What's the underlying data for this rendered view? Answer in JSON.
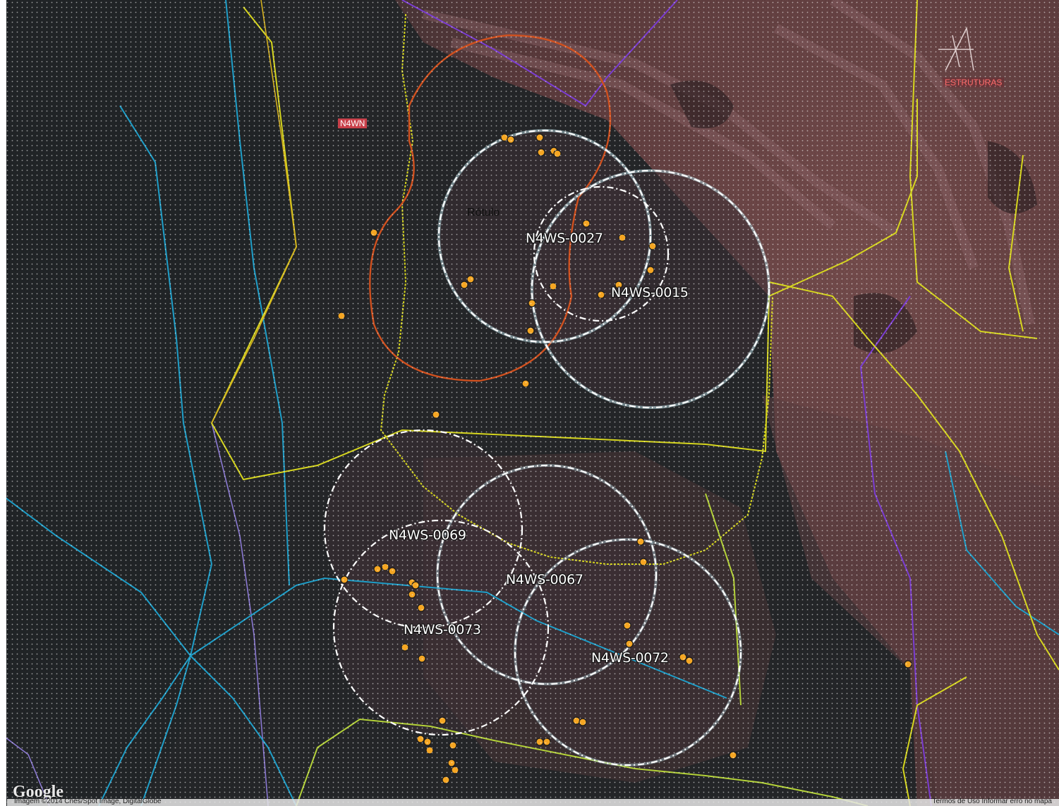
{
  "map": {
    "type": "satellite map",
    "area_labels": {
      "n4wn": "N4WN",
      "estruturas": "ESTRUTURAS",
      "rotulo": "Rótulo"
    },
    "buffer_labels": [
      {
        "id": "n4ws-0027",
        "text": "N4WS-0027"
      },
      {
        "id": "n4ws-0015",
        "text": "N4WS-0015"
      },
      {
        "id": "n4ws-0069",
        "text": "N4WS-0069"
      },
      {
        "id": "n4ws-0067",
        "text": "N4WS-0067"
      },
      {
        "id": "n4ws-0073",
        "text": "N4WS-0073"
      },
      {
        "id": "n4ws-0072",
        "text": "N4WS-0072"
      }
    ],
    "colors": {
      "forest": "#2a2c2e",
      "mine": "#6f4a4a",
      "buffer_circle": "#ffffff",
      "buffer_outline": "#b8dfe8",
      "orange_buffer": "#d0501e",
      "boundary_yellow": "#d8d81e",
      "boundary_lime": "#b4d238",
      "boundary_amber": "#d4b01e",
      "river_blue": "#1e9ec8",
      "purple_line": "#7a3cd2",
      "lavender_line": "#8a78d2",
      "point_fill": "#f5a623"
    }
  },
  "footer": {
    "google_logo": "Google",
    "attribution_left": "Imagem ©2014 Cnes/Spot Image, DigitalGlobe",
    "attribution_right": "Termos de Uso  Informar erro no mapa"
  }
}
